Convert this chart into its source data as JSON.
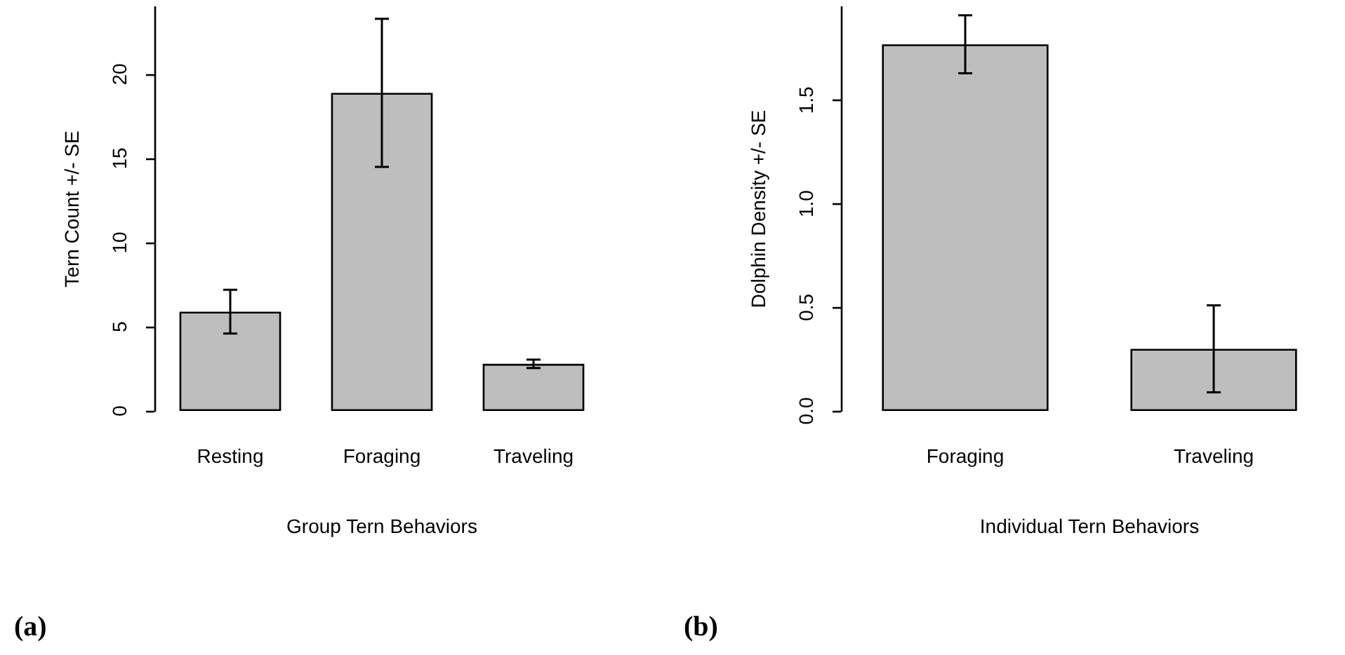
{
  "chart_data": [
    {
      "type": "bar",
      "xlabel": "Group Tern Behaviors",
      "ylabel": "Tern Count +/- SE",
      "categories": [
        "Resting",
        "Foraging",
        "Traveling"
      ],
      "values": [
        5.9,
        18.9,
        2.8
      ],
      "errors": [
        1.3,
        4.4,
        0.25
      ],
      "color": "#bebebe",
      "ylim": [
        0,
        24
      ],
      "yticks": [
        0,
        5,
        10,
        15,
        20
      ],
      "grid": false,
      "annotations": [
        "(a)"
      ]
    },
    {
      "type": "bar",
      "xlabel": "Individual Tern Behaviors",
      "ylabel": "Dolphin Density +/- SE",
      "categories": [
        "Foraging",
        "Traveling"
      ],
      "values": [
        1.77,
        0.3
      ],
      "errors": [
        0.14,
        0.21
      ],
      "color": "#bebebe",
      "ylim": [
        0,
        1.95
      ],
      "yticks": [
        {
          "value": 0,
          "label": "0.0"
        },
        0.5,
        {
          "value": 1,
          "label": "1.0"
        },
        1.5
      ],
      "grid": false,
      "annotations": [
        "(b)"
      ]
    }
  ]
}
